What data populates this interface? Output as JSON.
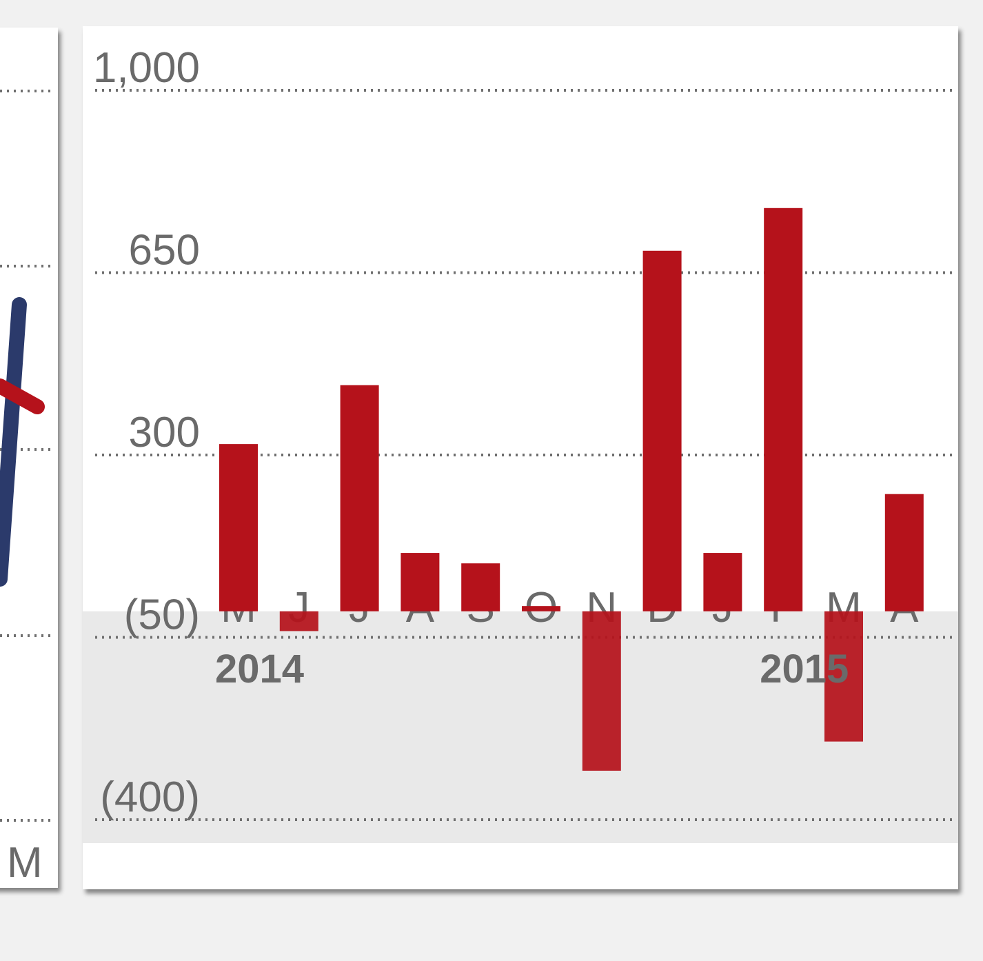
{
  "colors": {
    "bar": "#b5121b",
    "line_blue": "#2b3a6b",
    "negative_region": "#e9e9e9",
    "gridline": "#6f6f6f",
    "text": "#6a6a6a",
    "label_on_bar": "#7a7a6a"
  },
  "left_panel": {
    "x_label": "M"
  },
  "chart_data": {
    "type": "bar",
    "categories": [
      "M",
      "J",
      "J",
      "A",
      "S",
      "O",
      "N",
      "D",
      "J",
      "F",
      "M",
      "A"
    ],
    "year_labels": [
      {
        "label": "2014",
        "category_index": 0
      },
      {
        "label": "2015",
        "category_index": 9
      }
    ],
    "values": [
      321,
      -38,
      434,
      112,
      92,
      10,
      -306,
      692,
      112,
      774,
      -250,
      225
    ],
    "ylim": [
      -400,
      1000
    ],
    "yticks": [
      1000,
      650,
      300,
      -50,
      -400
    ],
    "ytick_labels": [
      "1,000",
      "650",
      "300",
      "(50)",
      "(400)"
    ],
    "grid": true,
    "title": "",
    "xlabel": "",
    "ylabel": ""
  }
}
